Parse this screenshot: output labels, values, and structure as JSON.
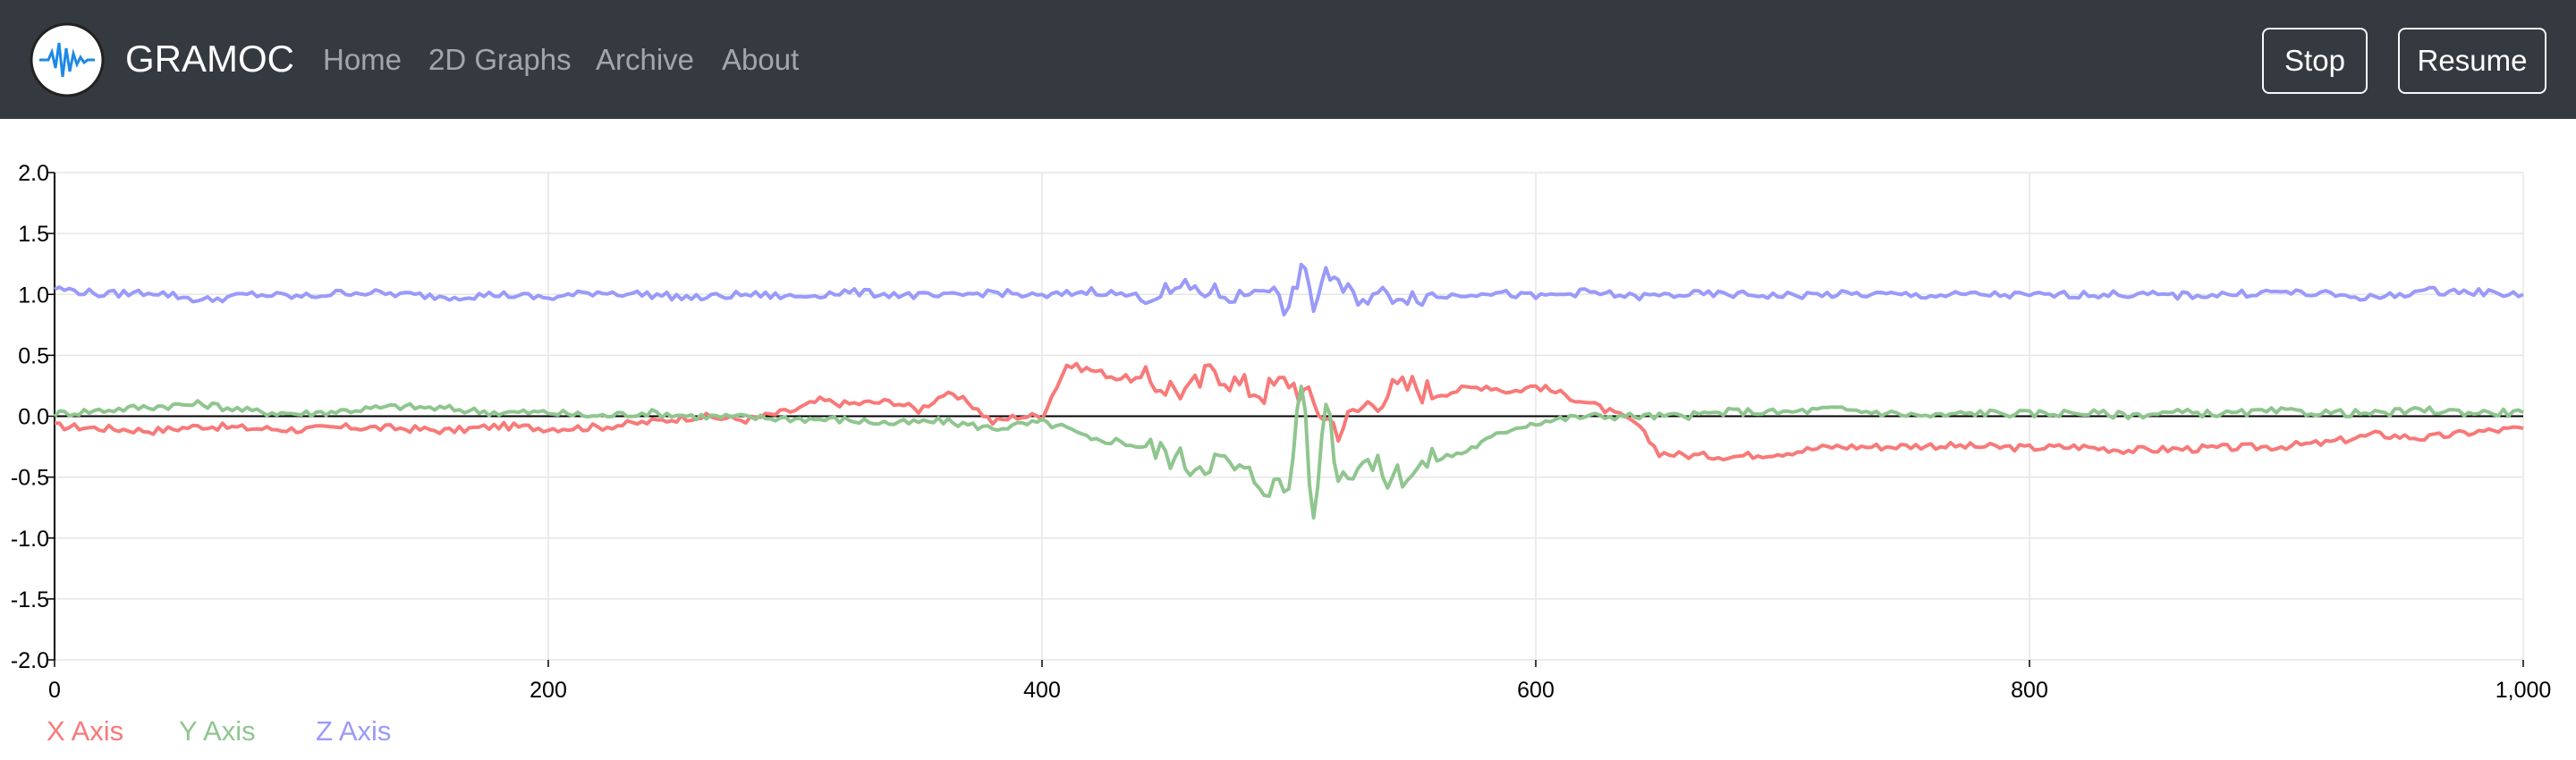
{
  "app": {
    "brand": "GRAMOC",
    "logo_icon": "waveform-icon",
    "logo_color": "#1e88e5"
  },
  "nav": {
    "links": [
      "Home",
      "2D Graphs",
      "Archive",
      "About"
    ],
    "stop_label": "Stop",
    "resume_label": "Resume"
  },
  "chart_data": {
    "type": "line",
    "title": "",
    "xlabel": "",
    "ylabel": "",
    "xlim": [
      0,
      1000
    ],
    "ylim": [
      -2.0,
      2.0
    ],
    "x_ticks": [
      0,
      200,
      400,
      600,
      800,
      1000
    ],
    "x_tick_labels": [
      "0",
      "200",
      "400",
      "600",
      "800",
      "1,000"
    ],
    "y_ticks": [
      -2.0,
      -1.5,
      -1.0,
      -0.5,
      0.0,
      0.5,
      1.0,
      1.5,
      2.0
    ],
    "y_tick_labels": [
      "-2.0",
      "-1.5",
      "-1.0",
      "-0.5",
      "0.0",
      "0.5",
      "1.0",
      "1.5",
      "2.0"
    ],
    "grid": true,
    "legend_position": "bottom-left",
    "series": [
      {
        "name": "X Axis",
        "color": "#f87979",
        "x": [
          0,
          20,
          40,
          60,
          80,
          100,
          120,
          140,
          160,
          180,
          200,
          220,
          240,
          260,
          280,
          300,
          310,
          320,
          340,
          350,
          360,
          370,
          380,
          390,
          400,
          410,
          420,
          430,
          440,
          450,
          460,
          470,
          480,
          490,
          500,
          510,
          520,
          530,
          540,
          550,
          560,
          570,
          580,
          590,
          600,
          620,
          640,
          650,
          660,
          680,
          700,
          720,
          740,
          760,
          780,
          800,
          820,
          840,
          860,
          880,
          900,
          920,
          940,
          960,
          980,
          1000
        ],
        "y": [
          -0.08,
          -0.1,
          -0.12,
          -0.08,
          -0.1,
          -0.11,
          -0.09,
          -0.1,
          -0.12,
          -0.08,
          -0.1,
          -0.09,
          -0.05,
          0.0,
          -0.03,
          0.05,
          0.13,
          0.1,
          0.12,
          0.05,
          0.18,
          0.12,
          -0.05,
          0.0,
          0.0,
          0.42,
          0.38,
          0.32,
          0.3,
          0.25,
          0.2,
          0.4,
          0.25,
          0.2,
          0.3,
          0.1,
          -0.1,
          0.08,
          0.2,
          0.25,
          0.18,
          0.22,
          0.25,
          0.2,
          0.25,
          0.12,
          -0.05,
          -0.3,
          -0.32,
          -0.33,
          -0.3,
          -0.25,
          -0.25,
          -0.24,
          -0.25,
          -0.26,
          -0.25,
          -0.28,
          -0.27,
          -0.26,
          -0.25,
          -0.22,
          -0.15,
          -0.18,
          -0.13,
          -0.1
        ]
      },
      {
        "name": "Y Axis",
        "color": "#8fc68f",
        "x": [
          0,
          20,
          40,
          60,
          80,
          100,
          120,
          140,
          160,
          180,
          200,
          220,
          240,
          260,
          280,
          300,
          320,
          340,
          360,
          380,
          400,
          410,
          420,
          430,
          440,
          450,
          460,
          470,
          480,
          490,
          500,
          505,
          510,
          515,
          520,
          530,
          540,
          550,
          560,
          570,
          580,
          590,
          600,
          620,
          640,
          660,
          680,
          700,
          720,
          740,
          760,
          780,
          800,
          820,
          840,
          860,
          880,
          900,
          920,
          940,
          960,
          980,
          1000
        ],
        "y": [
          0.02,
          0.05,
          0.08,
          0.1,
          0.04,
          0.02,
          0.05,
          0.08,
          0.06,
          0.03,
          0.03,
          0.0,
          0.03,
          0.0,
          -0.01,
          -0.02,
          -0.03,
          -0.06,
          -0.04,
          -0.1,
          -0.05,
          -0.1,
          -0.2,
          -0.2,
          -0.25,
          -0.3,
          -0.4,
          -0.35,
          -0.45,
          -0.55,
          -0.6,
          0.35,
          -0.9,
          0.2,
          -0.5,
          -0.35,
          -0.5,
          -0.45,
          -0.35,
          -0.3,
          -0.2,
          -0.1,
          -0.05,
          0.0,
          0.0,
          0.0,
          0.04,
          0.03,
          0.06,
          0.03,
          0.0,
          0.03,
          0.02,
          0.03,
          0.01,
          0.03,
          0.02,
          0.04,
          0.03,
          0.02,
          0.05,
          0.03,
          0.03
        ]
      },
      {
        "name": "Z Axis",
        "color": "#9a9afa",
        "x": [
          0,
          20,
          40,
          60,
          80,
          100,
          120,
          140,
          160,
          180,
          200,
          220,
          240,
          260,
          280,
          300,
          320,
          340,
          360,
          380,
          400,
          420,
          440,
          460,
          480,
          490,
          500,
          505,
          510,
          515,
          520,
          530,
          540,
          560,
          580,
          600,
          620,
          640,
          660,
          680,
          700,
          720,
          740,
          760,
          780,
          800,
          820,
          840,
          860,
          880,
          900,
          920,
          940,
          960,
          980,
          1000
        ],
        "y": [
          1.05,
          1.0,
          1.02,
          0.95,
          1.0,
          0.98,
          1.02,
          1.0,
          0.98,
          1.0,
          0.97,
          1.02,
          1.0,
          0.97,
          1.0,
          0.98,
          1.02,
          1.0,
          0.98,
          1.02,
          0.98,
          1.03,
          0.98,
          1.05,
          0.97,
          1.1,
          0.85,
          1.25,
          0.9,
          1.2,
          1.05,
          0.97,
          1.0,
          0.98,
          1.02,
          0.98,
          1.02,
          0.98,
          1.0,
          1.0,
          0.99,
          1.0,
          1.0,
          0.99,
          1.0,
          0.99,
          1.0,
          1.0,
          0.99,
          1.0,
          1.02,
          1.0,
          0.97,
          1.03,
          1.02,
          1.0
        ]
      }
    ]
  }
}
